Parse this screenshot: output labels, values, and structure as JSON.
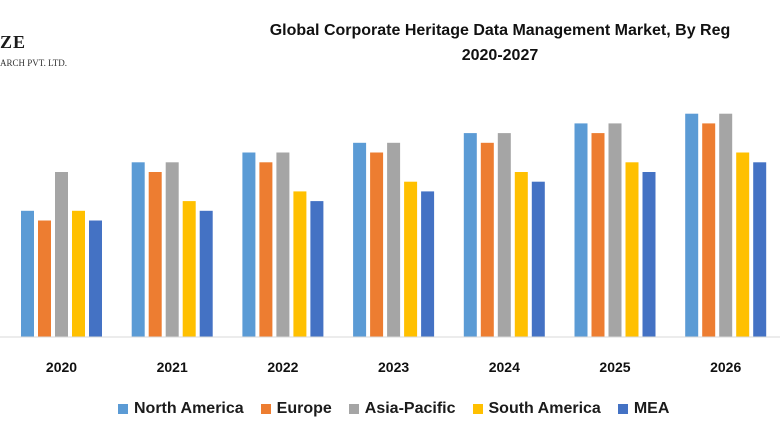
{
  "logo": {
    "mark": "ZE",
    "sub": "ARCH PVT. LTD."
  },
  "title_line1": "Global Corporate Heritage Data Management Market, By Reg",
  "title_line2": "2020-2027",
  "chart_data": {
    "type": "bar",
    "title": "Global Corporate Heritage Data Management Market, By Reg 2020-2027",
    "categories": [
      "2020",
      "2021",
      "2022",
      "2023",
      "2024",
      "2025",
      "2026"
    ],
    "series": [
      {
        "name": "North America",
        "color": "#5B9BD5",
        "values": [
          13,
          18,
          19,
          20,
          21,
          22,
          23
        ]
      },
      {
        "name": "Europe",
        "color": "#ED7D31",
        "values": [
          12,
          17,
          18,
          19,
          20,
          21,
          22
        ]
      },
      {
        "name": "Asia-Pacific",
        "color": "#A5A5A5",
        "values": [
          17,
          18,
          19,
          20,
          21,
          22,
          23
        ]
      },
      {
        "name": "South America",
        "color": "#FFC000",
        "values": [
          13,
          14,
          15,
          16,
          17,
          18,
          19
        ]
      },
      {
        "name": "MEA",
        "color": "#4472C4",
        "values": [
          12,
          13,
          14,
          15,
          16,
          17,
          18
        ]
      }
    ],
    "ylim": [
      0,
      24
    ],
    "xlabel": "",
    "ylabel": "",
    "grid": false,
    "legend_position": "bottom"
  }
}
